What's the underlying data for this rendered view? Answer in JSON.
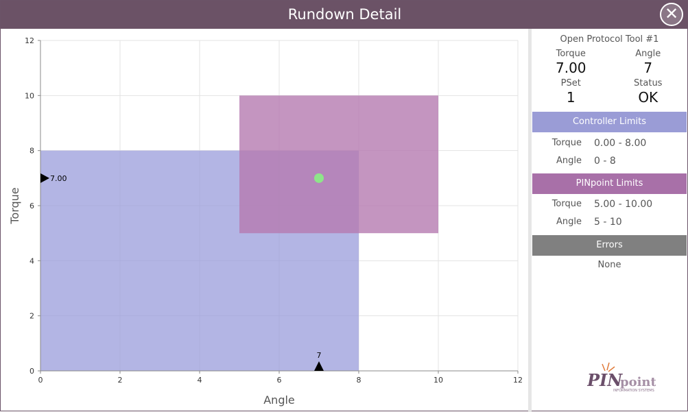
{
  "window": {
    "title": "Rundown Detail",
    "close_icon": "close-circle-icon"
  },
  "chart_data": {
    "type": "scatter",
    "xlabel": "Angle",
    "ylabel": "Torque",
    "xlim": [
      0,
      12
    ],
    "ylim": [
      0,
      12
    ],
    "xticks": [
      "0",
      "2",
      "4",
      "6",
      "8",
      "10",
      "12"
    ],
    "yticks": [
      "0",
      "2",
      "4",
      "6",
      "8",
      "10",
      "12"
    ],
    "grid": true,
    "regions": [
      {
        "name": "Controller Limits",
        "x": [
          0,
          8
        ],
        "y": [
          0,
          8
        ],
        "color": "#9a9cdb"
      },
      {
        "name": "PINpoint Limits",
        "x": [
          5,
          10
        ],
        "y": [
          5,
          10
        ],
        "color": "#b57bb0"
      }
    ],
    "points": [
      {
        "x": 7,
        "y": 7,
        "color": "#8ee58a"
      }
    ],
    "markers": {
      "y_label": "7.00",
      "y_value": 7,
      "x_label": "7",
      "x_value": 7
    }
  },
  "panel": {
    "tool": "Open Protocol Tool #1",
    "torque_label": "Torque",
    "torque": "7.00",
    "angle_label": "Angle",
    "angle": "7",
    "pset_label": "PSet",
    "pset": "1",
    "status_label": "Status",
    "status": "OK",
    "controller": {
      "title": "Controller Limits",
      "color": "#9a9cd6",
      "torque_label": "Torque",
      "torque": "0.00 - 8.00",
      "angle_label": "Angle",
      "angle": "0 - 8"
    },
    "pinpoint": {
      "title": "PINpoint Limits",
      "color": "#a870a8",
      "torque_label": "Torque",
      "torque": "5.00 - 10.00",
      "angle_label": "Angle",
      "angle": "5 - 10"
    },
    "errors": {
      "title": "Errors",
      "color": "#808080",
      "value": "None"
    },
    "logo": "PINpoint INFORMATION SYSTEMS"
  }
}
